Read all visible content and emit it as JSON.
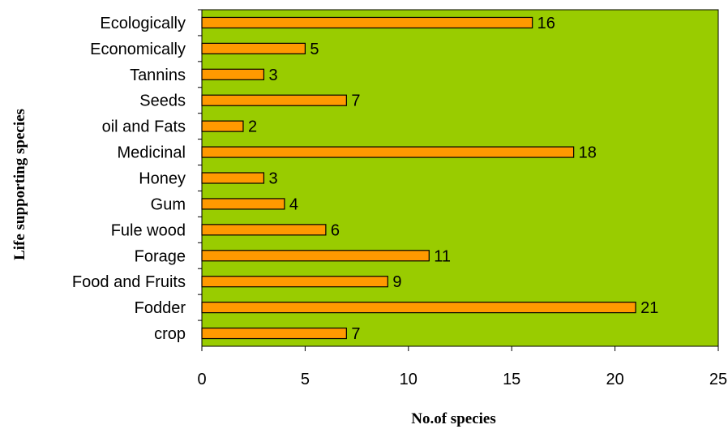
{
  "chart_data": {
    "type": "bar",
    "orientation": "horizontal",
    "categories": [
      "Ecologically",
      "Economically",
      "Tannins",
      "Seeds",
      "oil and Fats",
      "Medicinal",
      "Honey",
      "Gum",
      "Fule wood",
      "Forage",
      "Food and Fruits",
      "Fodder",
      "crop"
    ],
    "values": [
      16,
      5,
      3,
      7,
      2,
      18,
      3,
      4,
      6,
      11,
      9,
      21,
      7
    ],
    "xlabel": "No.of species",
    "ylabel": "Life supporting species",
    "xlim": [
      0,
      25
    ],
    "xticks": [
      0,
      5,
      10,
      15,
      20,
      25
    ],
    "grid": false,
    "legend": "none",
    "data_labels": true,
    "colors": {
      "plot_background": "#99cc00",
      "bar_fill": "#ff9900",
      "bar_stroke": "#000000"
    }
  }
}
